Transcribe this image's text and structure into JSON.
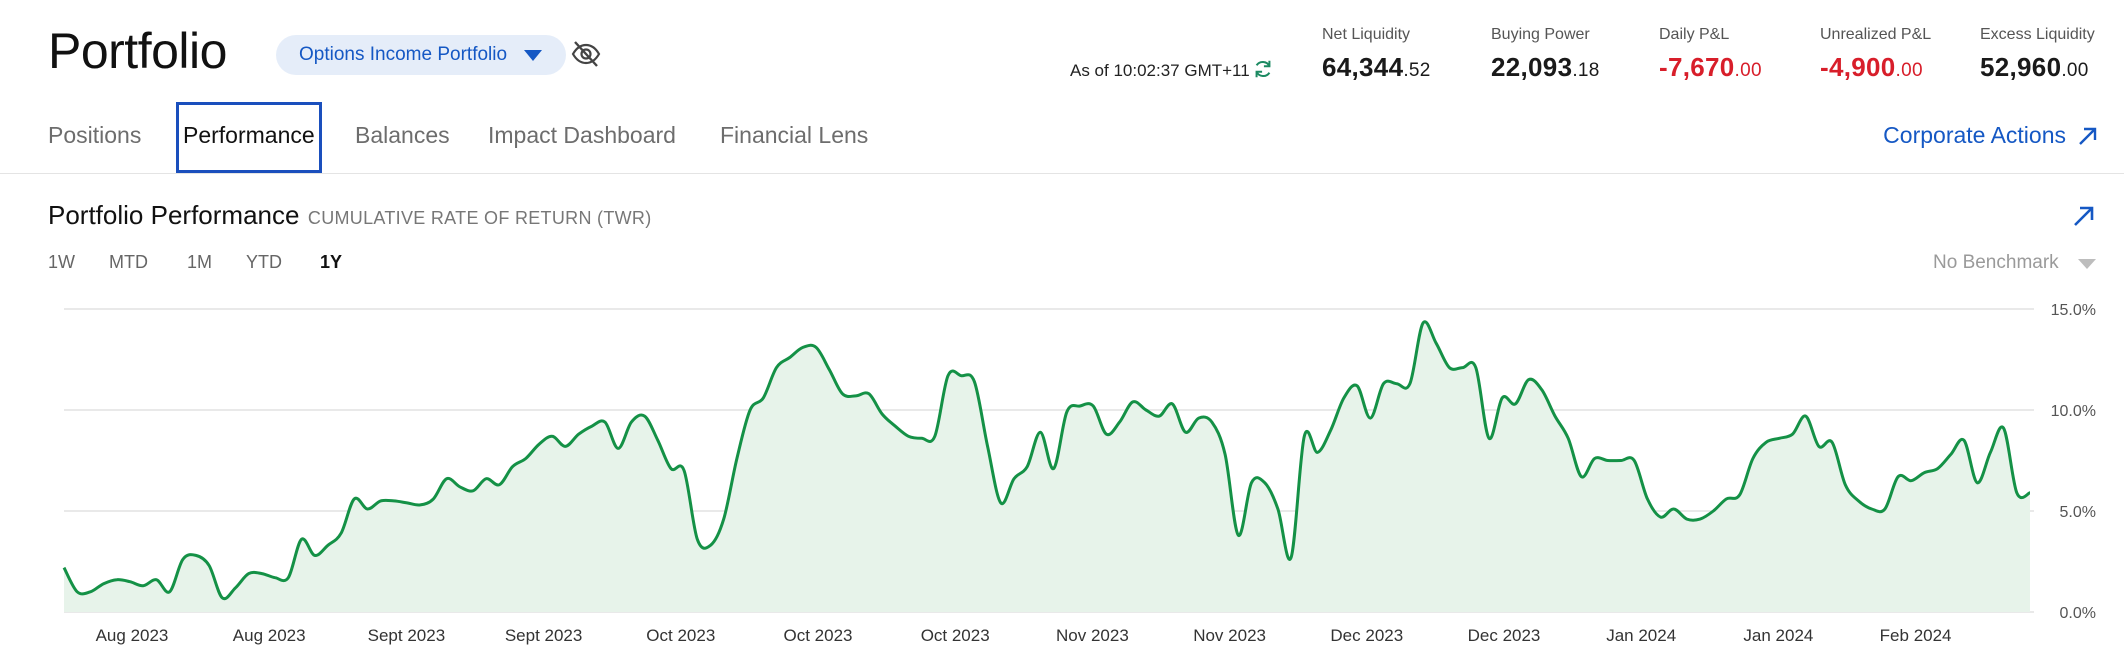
{
  "header": {
    "title": "Portfolio",
    "account_select": "Options Income Portfolio",
    "as_of": "As of 10:02:37 GMT+11"
  },
  "metrics": [
    {
      "label": "Net Liquidity",
      "int": "64,344",
      "dec": ".52",
      "negative": false
    },
    {
      "label": "Buying Power",
      "int": "22,093",
      "dec": ".18",
      "negative": false
    },
    {
      "label": "Daily P&L",
      "int": "-7,670",
      "dec": ".00",
      "negative": true
    },
    {
      "label": "Unrealized P&L",
      "int": "-4,900",
      "dec": ".00",
      "negative": true
    },
    {
      "label": "Excess Liquidity",
      "int": "52,960",
      "dec": ".00",
      "negative": false
    }
  ],
  "tabs": [
    "Positions",
    "Performance",
    "Balances",
    "Impact Dashboard",
    "Financial Lens"
  ],
  "active_tab": "Performance",
  "corporate_actions": "Corporate Actions",
  "performance": {
    "title": "Portfolio Performance",
    "subtitle": "CUMULATIVE RATE OF RETURN (TWR)",
    "ranges": [
      "1W",
      "MTD",
      "1M",
      "YTD",
      "1Y"
    ],
    "active_range": "1Y",
    "benchmark": "No Benchmark"
  },
  "colors": {
    "accent": "#1558c4",
    "negative": "#d81e2a",
    "line": "#149146",
    "area": "#e7f3ea"
  },
  "chart_data": {
    "type": "area",
    "x_tick_labels": [
      "Aug 2023",
      "Aug 2023",
      "Sept 2023",
      "Sept 2023",
      "Oct 2023",
      "Oct 2023",
      "Oct 2023",
      "Nov 2023",
      "Nov 2023",
      "Dec 2023",
      "Dec 2023",
      "Jan 2024",
      "Jan 2024",
      "Feb 2024"
    ],
    "y_ticks": [
      "0.0%",
      "5.0%",
      "10.0%",
      "15.0%"
    ],
    "ylim": [
      0,
      15
    ],
    "grid": true,
    "series": [
      {
        "values": [
          2.2,
          1.0,
          1.0,
          1.4,
          1.6,
          1.5,
          1.3,
          1.6,
          1.0,
          2.6,
          2.8,
          2.3,
          0.7,
          1.2,
          1.9,
          1.9,
          1.7,
          1.7,
          3.6,
          2.8,
          3.3,
          3.9,
          5.6,
          5.1,
          5.5,
          5.5,
          5.4,
          5.3,
          5.6,
          6.6,
          6.2,
          6.0,
          6.6,
          6.3,
          7.2,
          7.6,
          8.3,
          8.7,
          8.2,
          8.8,
          9.2,
          9.4,
          8.1,
          9.4,
          9.7,
          8.5,
          7.1,
          7.0,
          3.6,
          3.3,
          4.6,
          7.6,
          10.0,
          10.6,
          12.1,
          12.6,
          13.1,
          13.1,
          12.0,
          10.8,
          10.7,
          10.8,
          9.8,
          9.2,
          8.7,
          8.6,
          8.7,
          11.7,
          11.7,
          11.4,
          8.2,
          5.4,
          6.6,
          7.2,
          8.9,
          7.1,
          9.9,
          10.2,
          10.2,
          8.8,
          9.4,
          10.4,
          10.0,
          9.7,
          10.3,
          8.9,
          9.6,
          9.4,
          7.8,
          3.8,
          6.4,
          6.4,
          5.1,
          2.7,
          8.7,
          7.9,
          9.0,
          10.6,
          11.2,
          9.6,
          11.3,
          11.3,
          11.3,
          14.3,
          13.3,
          12.1,
          12.1,
          12.1,
          8.6,
          10.6,
          10.3,
          11.5,
          11.0,
          9.7,
          8.6,
          6.7,
          7.6,
          7.5,
          7.5,
          7.5,
          5.6,
          4.7,
          5.1,
          4.6,
          4.6,
          5.0,
          5.6,
          5.8,
          7.6,
          8.4,
          8.6,
          8.8,
          9.7,
          8.2,
          8.4,
          6.3,
          5.5,
          5.1,
          5.1,
          6.7,
          6.5,
          6.9,
          7.1,
          7.8,
          8.5,
          6.4,
          7.9,
          9.1,
          5.9,
          5.9
        ]
      }
    ]
  }
}
